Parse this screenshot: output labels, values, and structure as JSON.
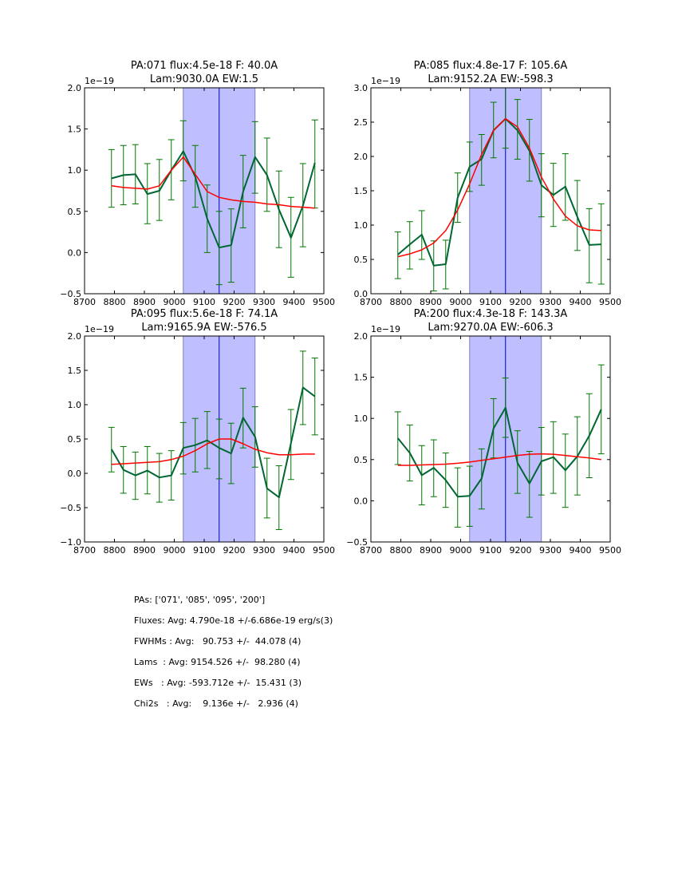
{
  "chart_data": [
    {
      "type": "line",
      "title_line1": "PA:071 flux:4.5e-18 F: 40.0A",
      "title_line2": "Lam:9030.0A EW:1.5",
      "offset_label": "1e−19",
      "xlim": [
        8700,
        9500
      ],
      "ylim": [
        -0.5,
        2.0
      ],
      "xticks": [
        8700,
        8800,
        8900,
        9000,
        9100,
        9200,
        9300,
        9400,
        9500
      ],
      "yticks": [
        -0.5,
        0.0,
        0.5,
        1.0,
        1.5,
        2.0
      ],
      "ytick_labels": [
        "−0.5",
        "0.0",
        "0.5",
        "1.0",
        "1.5",
        "2.0"
      ],
      "band": [
        9030,
        9270
      ],
      "center_line": 9150,
      "x": [
        8790,
        8830,
        8870,
        8910,
        8950,
        8990,
        9030,
        9070,
        9110,
        9150,
        9190,
        9230,
        9270,
        9310,
        9350,
        9390,
        9430,
        9470
      ],
      "series": [
        {
          "name": "data",
          "color": "#006633",
          "values": [
            0.9,
            0.94,
            0.95,
            0.71,
            0.75,
            1.0,
            1.23,
            0.92,
            0.41,
            0.06,
            0.09,
            0.74,
            1.16,
            0.94,
            0.52,
            0.18,
            0.57,
            1.09
          ]
        },
        {
          "name": "fit",
          "color": "#ff0000",
          "values": [
            0.81,
            0.79,
            0.78,
            0.77,
            0.81,
            1.0,
            1.16,
            0.95,
            0.74,
            0.67,
            0.64,
            0.62,
            0.61,
            0.59,
            0.58,
            0.56,
            0.55,
            0.54
          ]
        }
      ],
      "err_low": [
        0.55,
        0.58,
        0.59,
        0.35,
        0.39,
        0.64,
        0.87,
        0.55,
        0.0,
        -0.39,
        -0.36,
        0.3,
        0.72,
        0.5,
        0.06,
        -0.3,
        0.07,
        0.54
      ],
      "err_high": [
        1.25,
        1.3,
        1.31,
        1.08,
        1.13,
        1.37,
        1.6,
        1.3,
        0.82,
        0.5,
        0.53,
        1.18,
        1.59,
        1.39,
        0.99,
        0.67,
        1.08,
        1.61
      ]
    },
    {
      "type": "line",
      "title_line1": "PA:085 flux:4.8e-17 F: 105.6A",
      "title_line2": "Lam:9152.2A EW:-598.3",
      "offset_label": "1e−19",
      "xlim": [
        8700,
        9500
      ],
      "ylim": [
        0.0,
        3.0
      ],
      "xticks": [
        8700,
        8800,
        8900,
        9000,
        9100,
        9200,
        9300,
        9400,
        9500
      ],
      "yticks": [
        0.0,
        0.5,
        1.0,
        1.5,
        2.0,
        2.5,
        3.0
      ],
      "ytick_labels": [
        "0.0",
        "0.5",
        "1.0",
        "1.5",
        "2.0",
        "2.5",
        "3.0"
      ],
      "band": [
        9030,
        9270
      ],
      "center_line": 9150,
      "x": [
        8790,
        8830,
        8870,
        8910,
        8950,
        8990,
        9030,
        9070,
        9110,
        9150,
        9190,
        9230,
        9270,
        9310,
        9350,
        9390,
        9430,
        9470
      ],
      "series": [
        {
          "name": "data",
          "color": "#006633",
          "values": [
            0.57,
            0.72,
            0.86,
            0.41,
            0.43,
            1.4,
            1.85,
            1.96,
            2.38,
            2.55,
            2.38,
            2.08,
            1.58,
            1.44,
            1.56,
            1.12,
            0.71,
            0.72
          ]
        },
        {
          "name": "fit",
          "color": "#ff0000",
          "values": [
            0.54,
            0.58,
            0.64,
            0.74,
            0.92,
            1.22,
            1.6,
            2.03,
            2.38,
            2.55,
            2.43,
            2.12,
            1.7,
            1.38,
            1.13,
            0.99,
            0.93,
            0.92
          ]
        }
      ],
      "err_low": [
        0.22,
        0.36,
        0.5,
        0.04,
        0.07,
        1.04,
        1.49,
        1.58,
        1.98,
        2.12,
        1.96,
        1.64,
        1.12,
        0.98,
        1.07,
        0.63,
        0.16,
        0.14
      ],
      "err_high": [
        0.9,
        1.05,
        1.21,
        0.77,
        0.78,
        1.76,
        2.21,
        2.32,
        2.79,
        3.0,
        2.83,
        2.54,
        2.04,
        1.9,
        2.04,
        1.65,
        1.24,
        1.31
      ]
    },
    {
      "type": "line",
      "title_line1": "PA:095 flux:5.6e-18 F: 74.1A",
      "title_line2": "Lam:9165.9A EW:-576.5",
      "offset_label": "1e−19",
      "xlim": [
        8700,
        9500
      ],
      "ylim": [
        -1.0,
        2.0
      ],
      "xticks": [
        8700,
        8800,
        8900,
        9000,
        9100,
        9200,
        9300,
        9400,
        9500
      ],
      "yticks": [
        -1.0,
        -0.5,
        0.0,
        0.5,
        1.0,
        1.5,
        2.0
      ],
      "ytick_labels": [
        "−1.0",
        "−0.5",
        "0.0",
        "0.5",
        "1.0",
        "1.5",
        "2.0"
      ],
      "band": [
        9030,
        9270
      ],
      "center_line": 9150,
      "x": [
        8790,
        8830,
        8870,
        8910,
        8950,
        8990,
        9030,
        9070,
        9110,
        9150,
        9190,
        9230,
        9270,
        9310,
        9350,
        9390,
        9430,
        9470
      ],
      "series": [
        {
          "name": "data",
          "color": "#006633",
          "values": [
            0.35,
            0.05,
            -0.03,
            0.04,
            -0.06,
            -0.03,
            0.37,
            0.41,
            0.48,
            0.37,
            0.29,
            0.81,
            0.53,
            -0.22,
            -0.35,
            0.44,
            1.25,
            1.12
          ]
        },
        {
          "name": "fit",
          "color": "#ff0000",
          "values": [
            0.13,
            0.14,
            0.15,
            0.16,
            0.17,
            0.2,
            0.25,
            0.33,
            0.43,
            0.5,
            0.5,
            0.43,
            0.35,
            0.3,
            0.27,
            0.27,
            0.28,
            0.28
          ]
        }
      ],
      "err_low": [
        0.02,
        -0.29,
        -0.38,
        -0.3,
        -0.42,
        -0.39,
        -0.01,
        0.02,
        0.07,
        -0.08,
        -0.15,
        0.37,
        0.09,
        -0.65,
        -0.82,
        -0.09,
        0.71,
        0.56
      ],
      "err_high": [
        0.67,
        0.39,
        0.31,
        0.39,
        0.29,
        0.33,
        0.74,
        0.8,
        0.9,
        0.79,
        0.73,
        1.24,
        0.97,
        0.22,
        0.11,
        0.93,
        1.78,
        1.68
      ]
    },
    {
      "type": "line",
      "title_line1": "PA:200 flux:4.3e-18 F: 143.3A",
      "title_line2": "Lam:9270.0A EW:-606.3",
      "offset_label": "1e−19",
      "xlim": [
        8700,
        9500
      ],
      "ylim": [
        -0.5,
        2.0
      ],
      "xticks": [
        8700,
        8800,
        8900,
        9000,
        9100,
        9200,
        9300,
        9400,
        9500
      ],
      "yticks": [
        -0.5,
        0.0,
        0.5,
        1.0,
        1.5,
        2.0
      ],
      "ytick_labels": [
        "−0.5",
        "0.0",
        "0.5",
        "1.0",
        "1.5",
        "2.0"
      ],
      "band": [
        9030,
        9270
      ],
      "center_line": 9150,
      "x": [
        8790,
        8830,
        8870,
        8910,
        8950,
        8990,
        9030,
        9070,
        9110,
        9150,
        9190,
        9230,
        9270,
        9310,
        9350,
        9390,
        9430,
        9470
      ],
      "series": [
        {
          "name": "data",
          "color": "#006633",
          "values": [
            0.76,
            0.58,
            0.31,
            0.4,
            0.25,
            0.05,
            0.06,
            0.27,
            0.88,
            1.13,
            0.46,
            0.21,
            0.48,
            0.53,
            0.37,
            0.54,
            0.79,
            1.11
          ]
        },
        {
          "name": "fit",
          "color": "#ff0000",
          "values": [
            0.43,
            0.43,
            0.435,
            0.44,
            0.445,
            0.455,
            0.47,
            0.49,
            0.51,
            0.53,
            0.55,
            0.565,
            0.57,
            0.565,
            0.55,
            0.535,
            0.52,
            0.5
          ]
        }
      ],
      "err_low": [
        0.44,
        0.24,
        -0.05,
        0.05,
        -0.08,
        -0.32,
        -0.31,
        -0.1,
        0.52,
        0.77,
        0.09,
        -0.2,
        0.07,
        0.09,
        -0.08,
        0.07,
        0.28,
        0.57
      ],
      "err_high": [
        1.08,
        0.92,
        0.67,
        0.74,
        0.58,
        0.4,
        0.42,
        0.63,
        1.24,
        1.49,
        0.85,
        0.6,
        0.89,
        0.96,
        0.81,
        1.02,
        1.3,
        1.65
      ]
    }
  ],
  "colors": {
    "data": "#006633",
    "errorbar": "#007700",
    "fit": "#ff0000",
    "band_fill": "#bfbfff",
    "band_edge": "#8080c0",
    "center_line": "#0000cc"
  },
  "summary": {
    "pas": "PAs: ['071', '085', '095', '200']",
    "fluxes": "Fluxes: Avg: 4.790e-18 +/-6.686e-19 erg/s(3)",
    "fwhms": "FWHMs : Avg:   90.753 +/-  44.078 (4)",
    "lams": "Lams  : Avg: 9154.526 +/-  98.280 (4)",
    "ews": "EWs   : Avg: -593.712e +/-  15.431 (3)",
    "chi2s": "Chi2s   : Avg:    9.136e +/-   2.936 (4)"
  }
}
